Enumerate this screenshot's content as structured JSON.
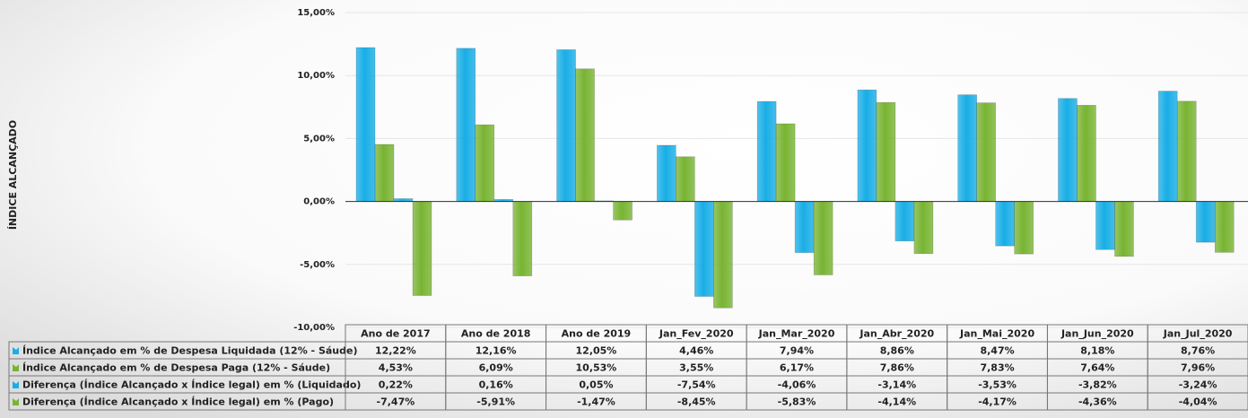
{
  "chart_data": {
    "type": "bar",
    "y_label": "ÍNDICE ALCANÇADO",
    "categories": [
      "Ano de 2017",
      "Ano de 2018",
      "Ano de 2019",
      "Jan_Fev_2020",
      "Jan_Mar_2020",
      "Jan_Abr_2020",
      "Jan_Mai_2020",
      "Jan_Jun_2020",
      "Jan_Jul_2020"
    ],
    "series": [
      {
        "name": "Índice Alcançado em % de Despesa Liquidada (12% - Sáude)",
        "color": "#18aee6",
        "values": [
          12.22,
          12.16,
          12.05,
          4.46,
          7.94,
          8.86,
          8.47,
          8.18,
          8.76
        ],
        "value_labels": [
          "12,22%",
          "12,16%",
          "12,05%",
          "4,46%",
          "7,94%",
          "8,86%",
          "8,47%",
          "8,18%",
          "8,76%"
        ]
      },
      {
        "name": "Índice Alcançado em % de Despesa Paga (12% - Sáude)",
        "color": "#78b432",
        "values": [
          4.53,
          6.09,
          10.53,
          3.55,
          6.17,
          7.86,
          7.83,
          7.64,
          7.96
        ],
        "value_labels": [
          "4,53%",
          "6,09%",
          "10,53%",
          "3,55%",
          "6,17%",
          "7,86%",
          "7,83%",
          "7,64%",
          "7,96%"
        ]
      },
      {
        "name": "Diferença (Índice Alcançado x Índice legal) em % (Liquidado)",
        "color": "#18aee6",
        "values": [
          0.22,
          0.16,
          0.05,
          -7.54,
          -4.06,
          -3.14,
          -3.53,
          -3.82,
          -3.24
        ],
        "value_labels": [
          "0,22%",
          "0,16%",
          "0,05%",
          "-7,54%",
          "-4,06%",
          "-3,14%",
          "-3,53%",
          "-3,82%",
          "-3,24%"
        ]
      },
      {
        "name": "Diferença (Índice Alcançado x Índice legal) em % (Pago)",
        "color": "#78b432",
        "values": [
          -7.47,
          -5.91,
          -1.47,
          -8.45,
          -5.83,
          -4.14,
          -4.17,
          -4.36,
          -4.04
        ],
        "value_labels": [
          "-7,47%",
          "-5,91%",
          "-1,47%",
          "-8,45%",
          "-5,83%",
          "-4,14%",
          "-4,17%",
          "-4,36%",
          "-4,04%"
        ]
      }
    ],
    "ylim": [
      -10,
      15
    ],
    "yticks": [
      {
        "value": -10,
        "label": "-10,00%"
      },
      {
        "value": -5,
        "label": "-5,00%"
      },
      {
        "value": 0,
        "label": "0,00%"
      },
      {
        "value": 5,
        "label": "5,00%"
      },
      {
        "value": 10,
        "label": "10,00%"
      },
      {
        "value": 15,
        "label": "15,00%"
      }
    ],
    "grid": true
  }
}
